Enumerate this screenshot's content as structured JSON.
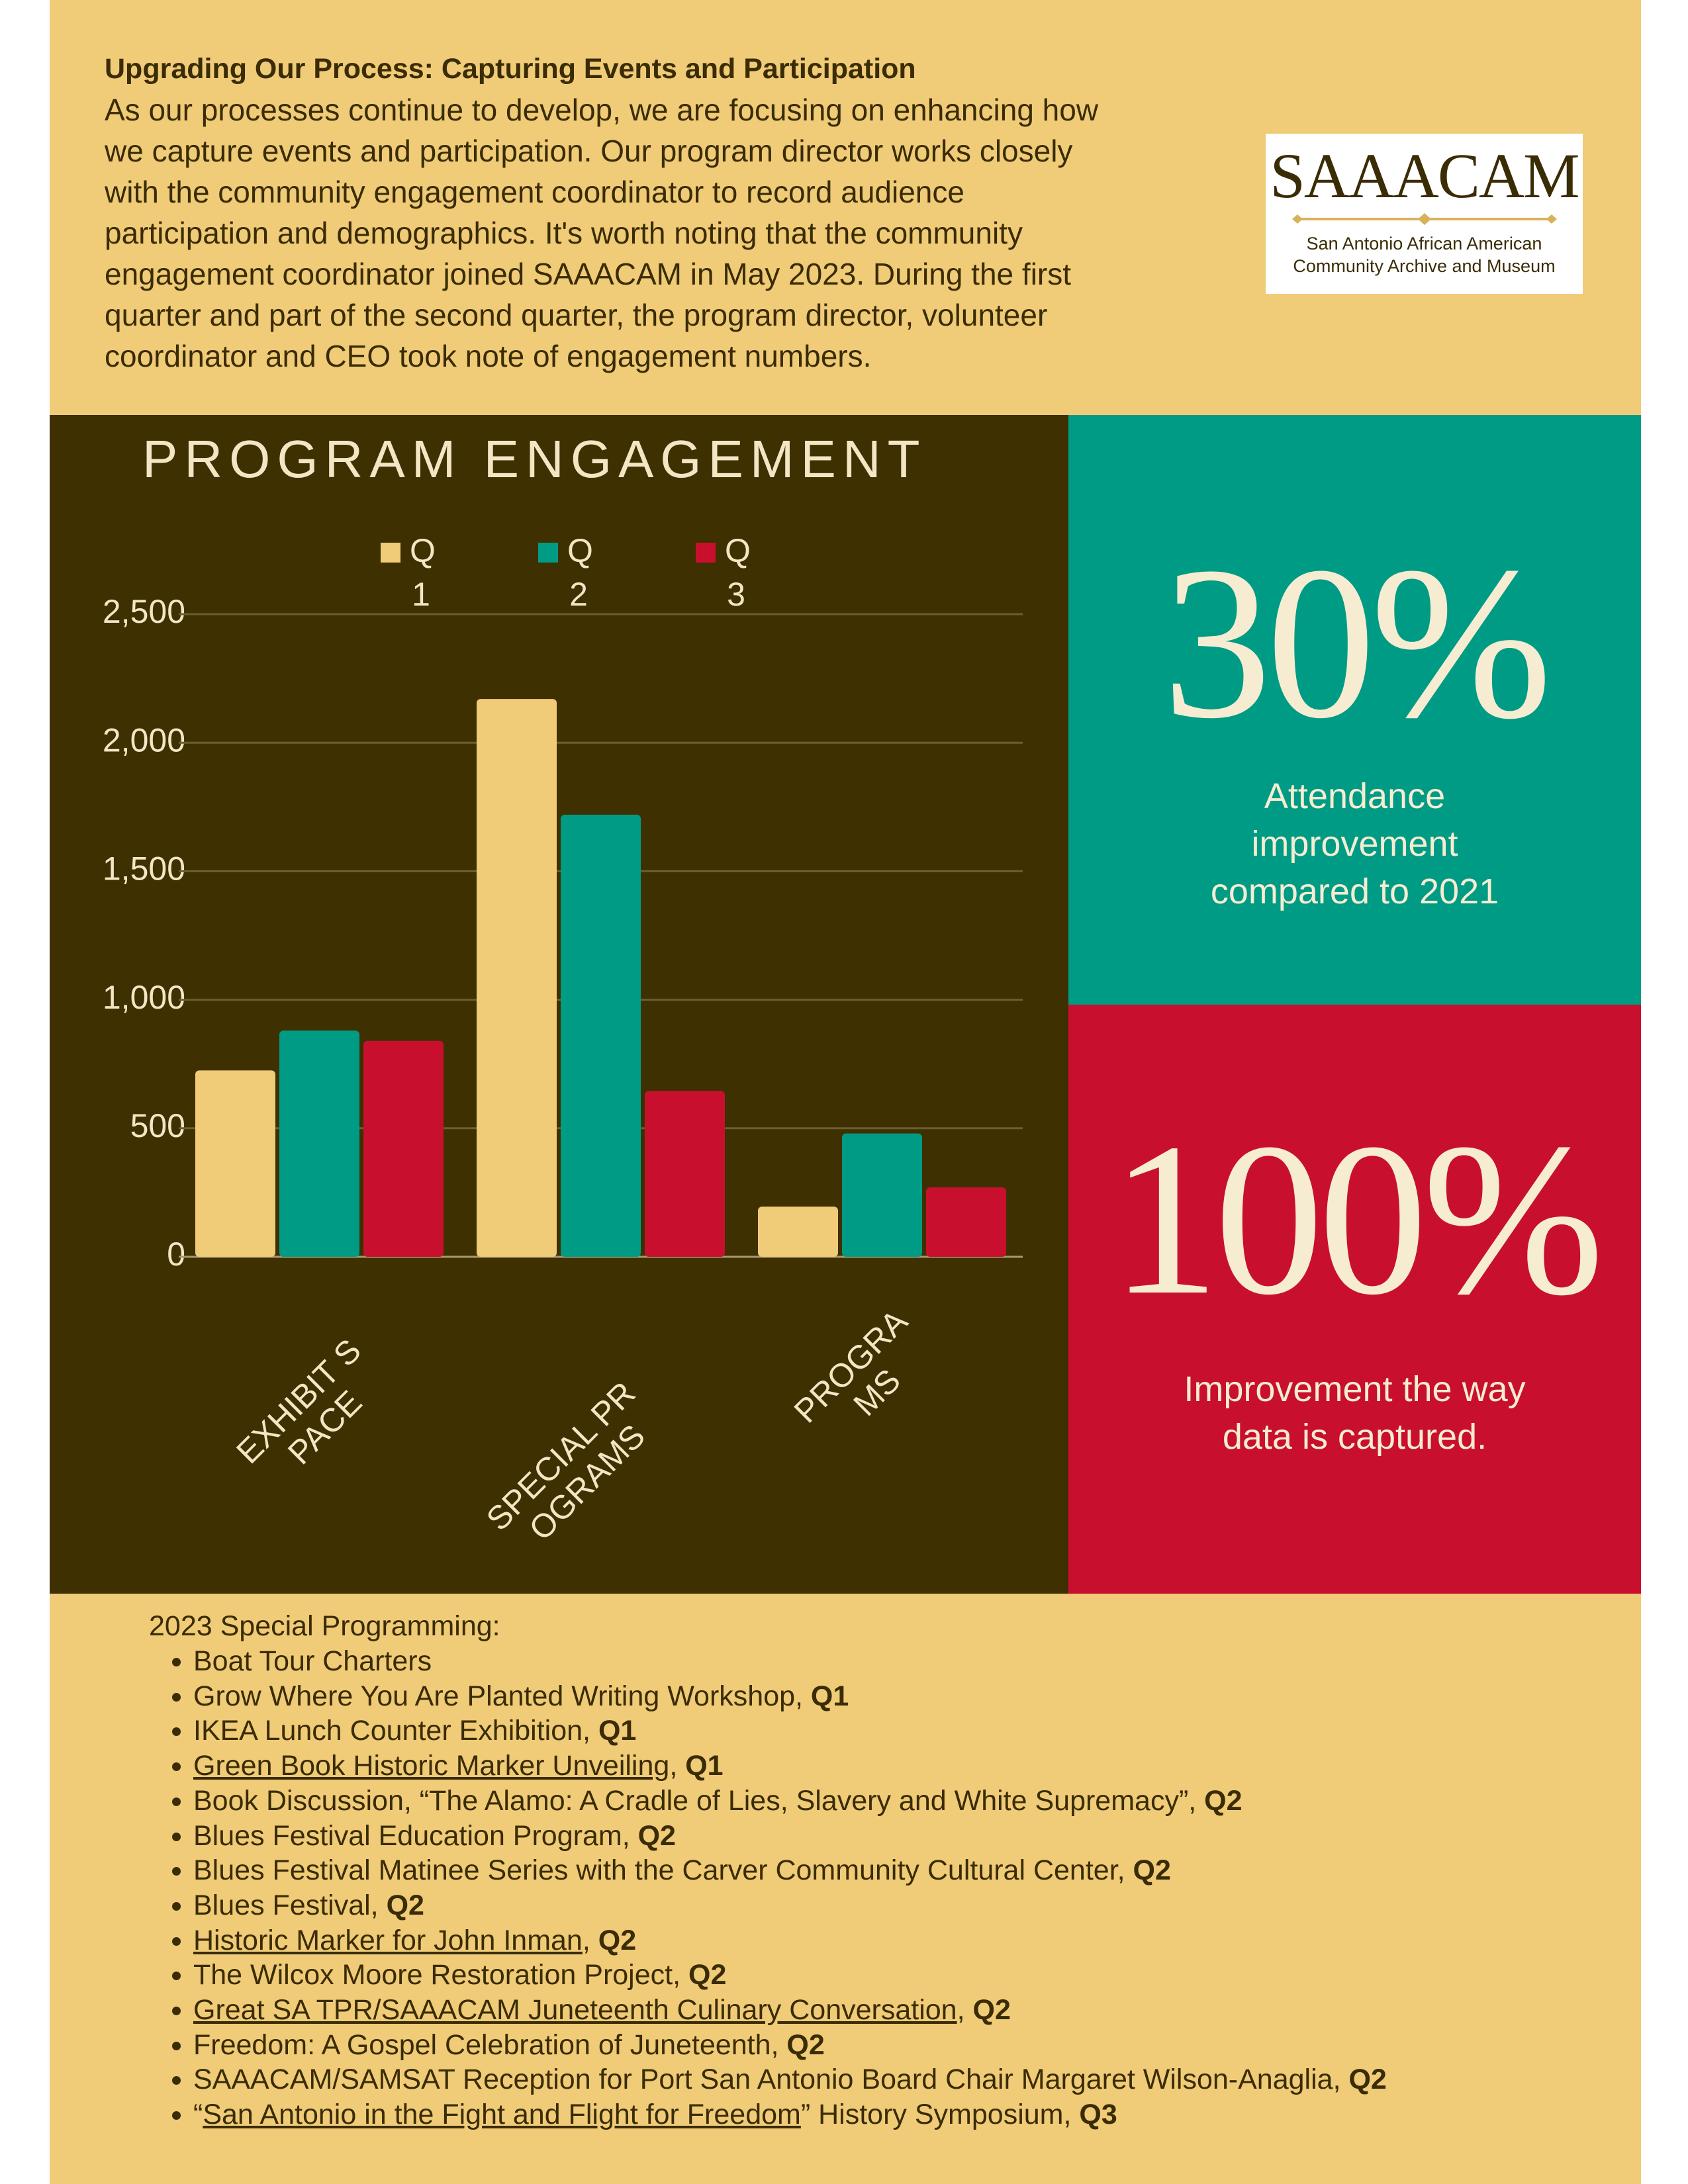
{
  "header": {
    "title": "Upgrading Our Process: Capturing Events and Participation",
    "lines": [
      "As our processes continue to develop, we are focusing on enhancing how",
      "we capture events and participation. Our program director works closely",
      "with the community engagement coordinator to record audience",
      "participation and demographics. It's worth noting that the community",
      "engagement coordinator joined SAAACAM in May 2023. During the first",
      "quarter and part of the second quarter, the program director, volunteer",
      "coordinator and CEO took note of engagement numbers."
    ]
  },
  "logo": {
    "name": "SAAACAM",
    "line1": "San Antonio African American",
    "line2": "Community Archive and Museum"
  },
  "chart_data": {
    "type": "bar",
    "title": "PROGRAM ENGAGEMENT",
    "categories": [
      "EXHIBIT SPACE",
      "SPECIAL PROGRAMS",
      "PROGRAMS"
    ],
    "series": [
      {
        "name": "Q1",
        "color": "#f0cb78",
        "values": [
          725,
          2170,
          195
        ]
      },
      {
        "name": "Q2",
        "color": "#009b84",
        "values": [
          880,
          1720,
          480
        ]
      },
      {
        "name": "Q3",
        "color": "#c8102e",
        "values": [
          840,
          645,
          270
        ]
      }
    ],
    "ylim": [
      0,
      2500
    ],
    "yticks": [
      0,
      500,
      {
        "value": 1000,
        "label": "1,000"
      },
      {
        "value": 1500,
        "label": "1,500"
      },
      {
        "value": 2000,
        "label": "2,000"
      },
      {
        "value": 2500,
        "label": "2,500"
      }
    ],
    "grid": true
  },
  "stats": [
    {
      "value": "30%",
      "caption": [
        "Attendance",
        "improvement",
        "compared to 2021"
      ]
    },
    {
      "value": "100%",
      "caption": [
        "Improvement the way",
        "data is captured."
      ]
    }
  ],
  "list": {
    "title": "2023 Special Programming:",
    "items": [
      [
        {
          "text": "Boat Tour Charters"
        }
      ],
      [
        {
          "text": "Grow Where You Are Planted Writing Workshop, "
        },
        {
          "text": "Q1",
          "bold": true
        }
      ],
      [
        {
          "text": "IKEA Lunch Counter Exhibition, "
        },
        {
          "text": "Q1",
          "bold": true
        }
      ],
      [
        {
          "text": "Green Book Historic Marker Unveiling",
          "underline": true
        },
        {
          "text": ", "
        },
        {
          "text": "Q1",
          "bold": true
        }
      ],
      [
        {
          "text": "Book Discussion, “The Alamo: A Cradle of Lies, Slavery and White Supremacy”, "
        },
        {
          "text": "Q2",
          "bold": true
        }
      ],
      [
        {
          "text": "Blues Festival Education Program, "
        },
        {
          "text": "Q2",
          "bold": true
        }
      ],
      [
        {
          "text": "Blues Festival Matinee Series with the Carver Community Cultural Center, "
        },
        {
          "text": "Q2",
          "bold": true
        }
      ],
      [
        {
          "text": "Blues Festival, "
        },
        {
          "text": "Q2",
          "bold": true
        }
      ],
      [
        {
          "text": "Historic Marker for John Inman",
          "underline": true
        },
        {
          "text": ", "
        },
        {
          "text": "Q2",
          "bold": true
        }
      ],
      [
        {
          "text": "The Wilcox Moore Restoration Project, "
        },
        {
          "text": "Q2",
          "bold": true
        }
      ],
      [
        {
          "text": "Great SA TPR/SAAACAM Juneteenth Culinary Conversation",
          "underline": true
        },
        {
          "text": ", "
        },
        {
          "text": "Q2",
          "bold": true
        }
      ],
      [
        {
          "text": "Freedom: A Gospel Celebration of Juneteenth, "
        },
        {
          "text": "Q2",
          "bold": true
        }
      ],
      [
        {
          "text": "SAAACAM/SAMSAT Reception for Port San Antonio Board Chair Margaret Wilson-Anaglia, "
        },
        {
          "text": "Q2",
          "bold": true
        }
      ],
      [
        {
          "text": "“"
        },
        {
          "text": "San Antonio in the Fight and Flight for Freedom",
          "underline": true
        },
        {
          "text": "” History Symposium, "
        },
        {
          "text": "Q3",
          "bold": true
        }
      ]
    ]
  }
}
